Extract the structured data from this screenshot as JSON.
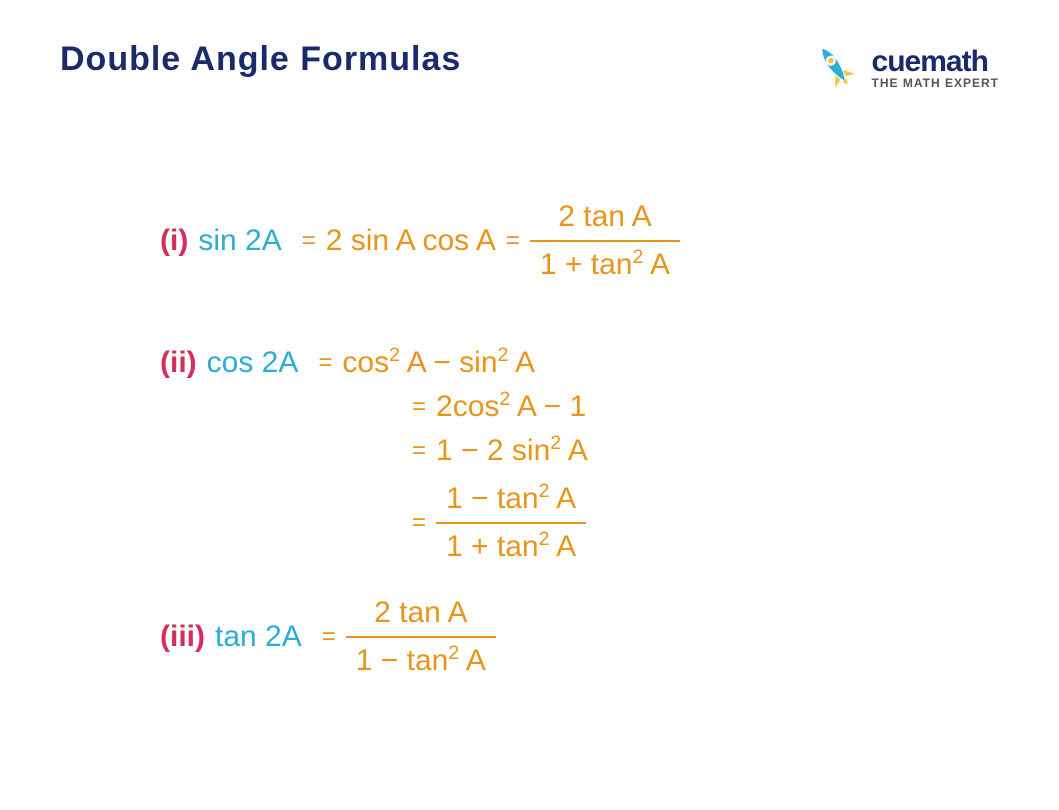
{
  "title": "Double Angle Formulas",
  "logo": {
    "brand": "cuemath",
    "tagline": "THE MATH EXPERT"
  },
  "colors": {
    "title": "#1b2a6b",
    "numeral": "#d62e5a",
    "lhs": "#2baed6",
    "rhs": "#e8951a",
    "logo_accent1": "#2baed6",
    "logo_accent2": "#f5c444",
    "background": "#ffffff"
  },
  "formulas": [
    {
      "numeral": "(i)",
      "lhs": "sin 2A",
      "equalities": [
        {
          "type": "inline",
          "text": "2 sin A cos A"
        },
        {
          "type": "fraction",
          "top": "2 tan A",
          "bottom_html": "1 + tan<sup>2</sup> A"
        }
      ]
    },
    {
      "numeral": "(ii)",
      "lhs": "cos 2A",
      "equalities": [
        {
          "type": "inline_html",
          "html": "cos<sup>2</sup> A − sin<sup>2</sup> A"
        },
        {
          "type": "inline_html",
          "html": "2cos<sup>2</sup> A − 1"
        },
        {
          "type": "inline_html",
          "html": "1 − 2 sin<sup>2</sup> A"
        },
        {
          "type": "fraction_html",
          "top_html": "1 − tan<sup>2</sup> A",
          "bottom_html": "1 + tan<sup>2</sup> A"
        }
      ]
    },
    {
      "numeral": "(iii)",
      "lhs": "tan 2A",
      "equalities": [
        {
          "type": "fraction_html",
          "top_html": "2 tan A",
          "bottom_html": "1 − tan<sup>2</sup> A"
        }
      ]
    }
  ],
  "typography": {
    "title_fontsize": 34,
    "formula_fontsize": 30,
    "eq_fontsize": 24,
    "font_family": "Comic Sans MS"
  }
}
